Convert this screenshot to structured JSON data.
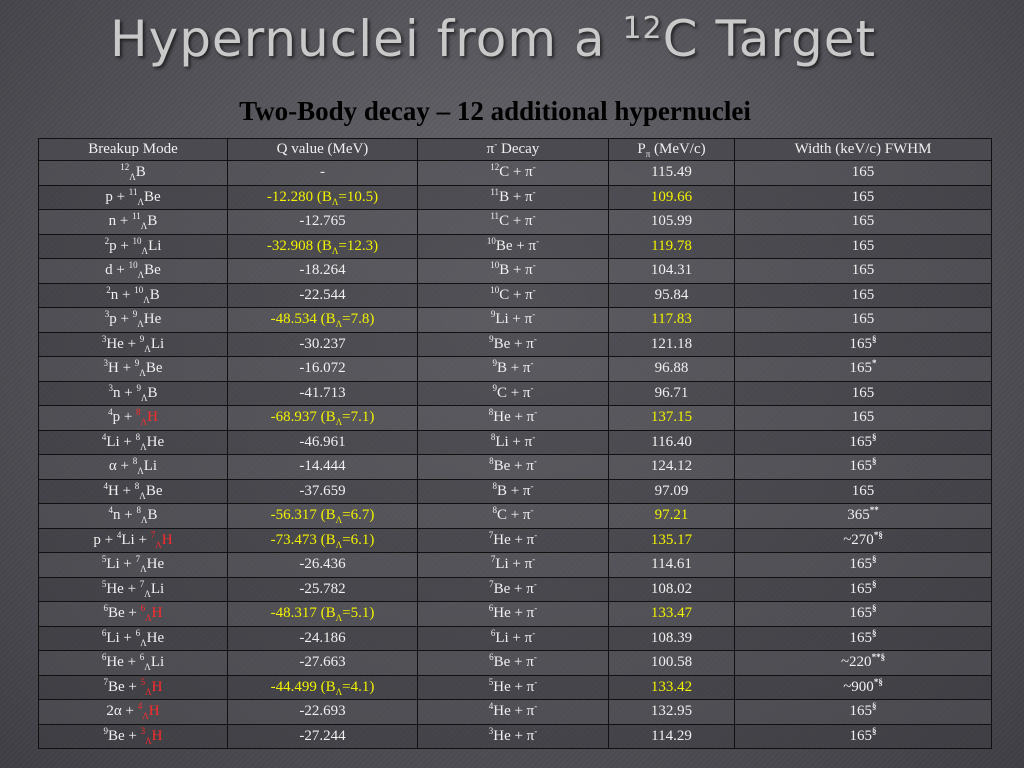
{
  "slide": {
    "title_main": "Hypernuclei from a ",
    "title_sup": "12",
    "title_end": "C Target",
    "subtitle": "Two-Body decay – 12 additional hypernuclei"
  },
  "table": {
    "headers": [
      "Breakup Mode",
      "Q value (MeV)",
      "π- Decay",
      "Pπ (MeV/c)",
      "Width (keV/c) FWHM"
    ],
    "rows": [
      {
        "mode": "12ΛB",
        "q": "-",
        "decay": "12C + π-",
        "p": "115.49",
        "width": "165",
        "highlight": false
      },
      {
        "mode": "p + 11ΛBe",
        "q": "-12.280 (BΛ=10.5)",
        "decay": "11B + π-",
        "p": "109.66",
        "width": "165",
        "highlight": true
      },
      {
        "mode": "n + 11ΛB",
        "q": "-12.765",
        "decay": "11C + π-",
        "p": "105.99",
        "width": "165",
        "highlight": false
      },
      {
        "mode": "2p + 10ΛLi",
        "q": "-32.908 (BΛ=12.3)",
        "decay": "10Be + π-",
        "p": "119.78",
        "width": "165",
        "highlight": true
      },
      {
        "mode": "d + 10ΛBe",
        "q": "-18.264",
        "decay": "10B + π-",
        "p": "104.31",
        "width": "165",
        "highlight": false
      },
      {
        "mode": "2n + 10ΛB",
        "q": "-22.544",
        "decay": "10C + π-",
        "p": "95.84",
        "width": "165",
        "highlight": false
      },
      {
        "mode": "3p + 9ΛHe",
        "q": "-48.534 (BΛ=7.8)",
        "decay": "9Li + π-",
        "p": "117.83",
        "width": "165",
        "highlight": true
      },
      {
        "mode": "3He + 9ΛLi",
        "q": "-30.237",
        "decay": "9Be + π-",
        "p": "121.18",
        "width": "165§",
        "highlight": false
      },
      {
        "mode": "3H + 9ΛBe",
        "q": "-16.072",
        "decay": "9B + π-",
        "p": "96.88",
        "width": "165*",
        "highlight": false
      },
      {
        "mode": "3n + 9ΛB",
        "q": "-41.713",
        "decay": "9C + π-",
        "p": "96.71",
        "width": "165",
        "highlight": false
      },
      {
        "mode": "4p + 8ΛH",
        "q": "-68.937 (BΛ=7.1)",
        "decay": "8He + π-",
        "p": "137.15",
        "width": "165",
        "highlight": true
      },
      {
        "mode": "4Li + 8ΛHe",
        "q": "-46.961",
        "decay": "8Li + π-",
        "p": "116.40",
        "width": "165§",
        "highlight": false
      },
      {
        "mode": "α + 8ΛLi",
        "q": "-14.444",
        "decay": "8Be + π-",
        "p": "124.12",
        "width": "165§",
        "highlight": false
      },
      {
        "mode": "4H + 8ΛBe",
        "q": "-37.659",
        "decay": "8B + π-",
        "p": "97.09",
        "width": "165",
        "highlight": false
      },
      {
        "mode": "4n + 8ΛB",
        "q": "-56.317 (BΛ=6.7)",
        "decay": "8C + π-",
        "p": "97.21",
        "width": "365**",
        "highlight": true
      },
      {
        "mode": "p + 4Li + 7ΛH",
        "q": "-73.473 (BΛ=6.1)",
        "decay": "7He + π-",
        "p": "135.17",
        "width": "~270*§",
        "highlight": true
      },
      {
        "mode": "5Li + 7ΛHe",
        "q": "-26.436",
        "decay": "7Li + π-",
        "p": "114.61",
        "width": "165§",
        "highlight": false
      },
      {
        "mode": "5He + 7ΛLi",
        "q": "-25.782",
        "decay": "7Be + π-",
        "p": "108.02",
        "width": "165§",
        "highlight": false
      },
      {
        "mode": "6Be + 6ΛH",
        "q": "-48.317 (BΛ=5.1)",
        "decay": "6He + π-",
        "p": "133.47",
        "width": "165§",
        "highlight": true
      },
      {
        "mode": "6Li + 6ΛHe",
        "q": "-24.186",
        "decay": "6Li + π-",
        "p": "108.39",
        "width": "165§",
        "highlight": false
      },
      {
        "mode": "6He + 6ΛLi",
        "q": "-27.663",
        "decay": "6Be + π-",
        "p": "100.58",
        "width": "~220**§",
        "highlight": false
      },
      {
        "mode": "7Be + 5ΛH",
        "q": "-44.499 (BΛ=4.1)",
        "decay": "5He + π-",
        "p": "133.42",
        "width": "~900*§",
        "highlight": true
      },
      {
        "mode": "2α + 4ΛH",
        "q": "-22.693",
        "decay": "4He + π-",
        "p": "132.95",
        "width": "165§",
        "highlight": false
      },
      {
        "mode": "9Be + 3ΛH",
        "q": "-27.244",
        "decay": "3He + π-",
        "p": "114.29",
        "width": "165§",
        "highlight": false
      }
    ]
  },
  "colors": {
    "highlight_yellow": "#f2f200",
    "hydrogen_red": "#ff2a2a"
  }
}
